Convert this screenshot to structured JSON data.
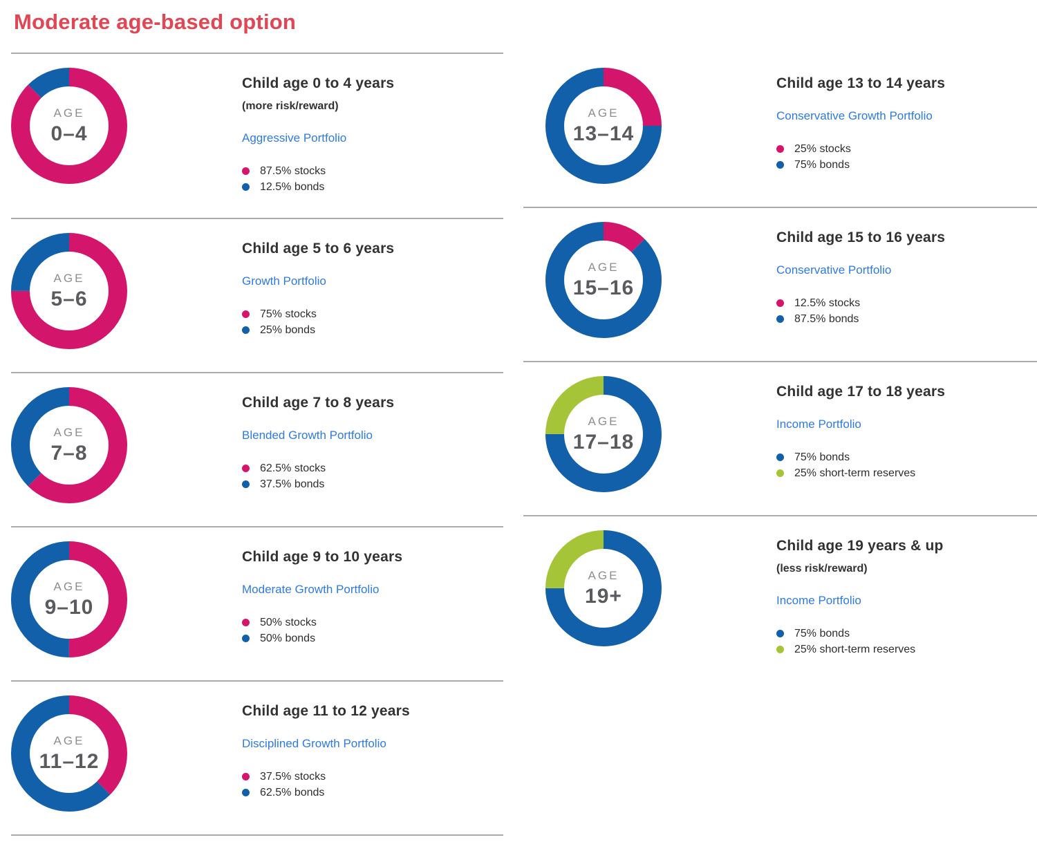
{
  "page": {
    "title": "Moderate age-based option"
  },
  "theme": {
    "title_color": "#e04653",
    "link_color": "#2d7be0",
    "heading_color": "#323232",
    "age_label_color": "#8b8d8f",
    "age_value_color": "#595b5e",
    "divider_color": "#ababab",
    "colors": {
      "stocks": "#d4156c",
      "bonds": "#1160a9",
      "short_term_reserves": "#a6c437"
    }
  },
  "donut": {
    "center_top_label": "AGE"
  },
  "panels": [
    {
      "column": "left",
      "age": "0–4",
      "heading": "Child age 0 to 4 years",
      "note": "(more risk/reward)",
      "portfolio": "Aggressive Portfolio",
      "segments": [
        {
          "key": "stocks",
          "pct": 87.5,
          "label": "87.5% stocks"
        },
        {
          "key": "bonds",
          "pct": 12.5,
          "label": "12.5% bonds"
        }
      ],
      "divider_below": true
    },
    {
      "column": "left",
      "age": "5–6",
      "heading": "Child age 5 to 6 years",
      "note": "",
      "portfolio": "Growth Portfolio",
      "segments": [
        {
          "key": "stocks",
          "pct": 75,
          "label": "75% stocks"
        },
        {
          "key": "bonds",
          "pct": 25,
          "label": "25% bonds"
        }
      ],
      "divider_below": true
    },
    {
      "column": "left",
      "age": "7–8",
      "heading": "Child age 7 to 8 years",
      "note": "",
      "portfolio": "Blended Growth Portfolio",
      "segments": [
        {
          "key": "stocks",
          "pct": 62.5,
          "label": "62.5% stocks"
        },
        {
          "key": "bonds",
          "pct": 37.5,
          "label": "37.5% bonds"
        }
      ],
      "divider_below": true
    },
    {
      "column": "left",
      "age": "9–10",
      "heading": "Child age 9 to 10 years",
      "note": "",
      "portfolio": "Moderate Growth Portfolio",
      "segments": [
        {
          "key": "stocks",
          "pct": 50,
          "label": "50% stocks"
        },
        {
          "key": "bonds",
          "pct": 50,
          "label": "50% bonds"
        }
      ],
      "divider_below": true
    },
    {
      "column": "left",
      "age": "11–12",
      "heading": "Child age 11 to 12 years",
      "note": "",
      "portfolio": "Disciplined Growth Portfolio",
      "segments": [
        {
          "key": "stocks",
          "pct": 37.5,
          "label": "37.5% stocks"
        },
        {
          "key": "bonds",
          "pct": 62.5,
          "label": "62.5% bonds"
        }
      ],
      "divider_below": true
    },
    {
      "column": "right",
      "age": "13–14",
      "heading": "Child age 13 to 14 years",
      "note": "",
      "portfolio": "Conservative Growth Portfolio",
      "segments": [
        {
          "key": "stocks",
          "pct": 25,
          "label": "25% stocks"
        },
        {
          "key": "bonds",
          "pct": 75,
          "label": "75% bonds"
        }
      ],
      "divider_below": true
    },
    {
      "column": "right",
      "age": "15–16",
      "heading": "Child age 15 to 16 years",
      "note": "",
      "portfolio": "Conservative Portfolio",
      "segments": [
        {
          "key": "stocks",
          "pct": 12.5,
          "label": "12.5% stocks"
        },
        {
          "key": "bonds",
          "pct": 87.5,
          "label": "87.5% bonds"
        }
      ],
      "divider_below": true
    },
    {
      "column": "right",
      "age": "17–18",
      "heading": "Child age 17 to 18 years",
      "note": "",
      "portfolio": "Income Portfolio",
      "segments": [
        {
          "key": "bonds",
          "pct": 75,
          "label": "75% bonds"
        },
        {
          "key": "short_term_reserves",
          "pct": 25,
          "label": "25% short-term reserves"
        }
      ],
      "divider_below": true
    },
    {
      "column": "right",
      "age": "19+",
      "heading": "Child age 19 years & up",
      "note": "(less risk/reward)",
      "portfolio": "Income Portfolio",
      "segments": [
        {
          "key": "bonds",
          "pct": 75,
          "label": "75% bonds"
        },
        {
          "key": "short_term_reserves",
          "pct": 25,
          "label": "25% short-term reserves"
        }
      ],
      "divider_below": false
    }
  ],
  "chart_data": [
    {
      "type": "pie",
      "donut": true,
      "title": "Child age 0 to 4 years",
      "subtitle": "(more risk/reward)",
      "portfolio": "Aggressive Portfolio",
      "center_label": "AGE 0–4",
      "labels": [
        "stocks",
        "bonds"
      ],
      "values": [
        87.5,
        12.5
      ],
      "colors": [
        "#d4156c",
        "#1160a9"
      ],
      "legend_position": "right"
    },
    {
      "type": "pie",
      "donut": true,
      "title": "Child age 5 to 6 years",
      "portfolio": "Growth Portfolio",
      "center_label": "AGE 5–6",
      "labels": [
        "stocks",
        "bonds"
      ],
      "values": [
        75,
        25
      ],
      "colors": [
        "#d4156c",
        "#1160a9"
      ],
      "legend_position": "right"
    },
    {
      "type": "pie",
      "donut": true,
      "title": "Child age 7 to 8 years",
      "portfolio": "Blended Growth Portfolio",
      "center_label": "AGE 7–8",
      "labels": [
        "stocks",
        "bonds"
      ],
      "values": [
        62.5,
        37.5
      ],
      "colors": [
        "#d4156c",
        "#1160a9"
      ],
      "legend_position": "right"
    },
    {
      "type": "pie",
      "donut": true,
      "title": "Child age 9 to 10 years",
      "portfolio": "Moderate Growth Portfolio",
      "center_label": "AGE 9–10",
      "labels": [
        "stocks",
        "bonds"
      ],
      "values": [
        50,
        50
      ],
      "colors": [
        "#d4156c",
        "#1160a9"
      ],
      "legend_position": "right"
    },
    {
      "type": "pie",
      "donut": true,
      "title": "Child age 11 to 12 years",
      "portfolio": "Disciplined Growth Portfolio",
      "center_label": "AGE 11–12",
      "labels": [
        "stocks",
        "bonds"
      ],
      "values": [
        37.5,
        62.5
      ],
      "colors": [
        "#d4156c",
        "#1160a9"
      ],
      "legend_position": "right"
    },
    {
      "type": "pie",
      "donut": true,
      "title": "Child age 13 to 14 years",
      "portfolio": "Conservative Growth Portfolio",
      "center_label": "AGE 13–14",
      "labels": [
        "stocks",
        "bonds"
      ],
      "values": [
        25,
        75
      ],
      "colors": [
        "#d4156c",
        "#1160a9"
      ],
      "legend_position": "right"
    },
    {
      "type": "pie",
      "donut": true,
      "title": "Child age 15 to 16 years",
      "portfolio": "Conservative Portfolio",
      "center_label": "AGE 15–16",
      "labels": [
        "stocks",
        "bonds"
      ],
      "values": [
        12.5,
        87.5
      ],
      "colors": [
        "#d4156c",
        "#1160a9"
      ],
      "legend_position": "right"
    },
    {
      "type": "pie",
      "donut": true,
      "title": "Child age 17 to 18 years",
      "portfolio": "Income Portfolio",
      "center_label": "AGE 17–18",
      "labels": [
        "bonds",
        "short-term reserves"
      ],
      "values": [
        75,
        25
      ],
      "colors": [
        "#1160a9",
        "#a6c437"
      ],
      "legend_position": "right"
    },
    {
      "type": "pie",
      "donut": true,
      "title": "Child age 19 years & up",
      "subtitle": "(less risk/reward)",
      "portfolio": "Income Portfolio",
      "center_label": "AGE 19+",
      "labels": [
        "bonds",
        "short-term reserves"
      ],
      "values": [
        75,
        25
      ],
      "colors": [
        "#1160a9",
        "#a6c437"
      ],
      "legend_position": "right"
    }
  ]
}
